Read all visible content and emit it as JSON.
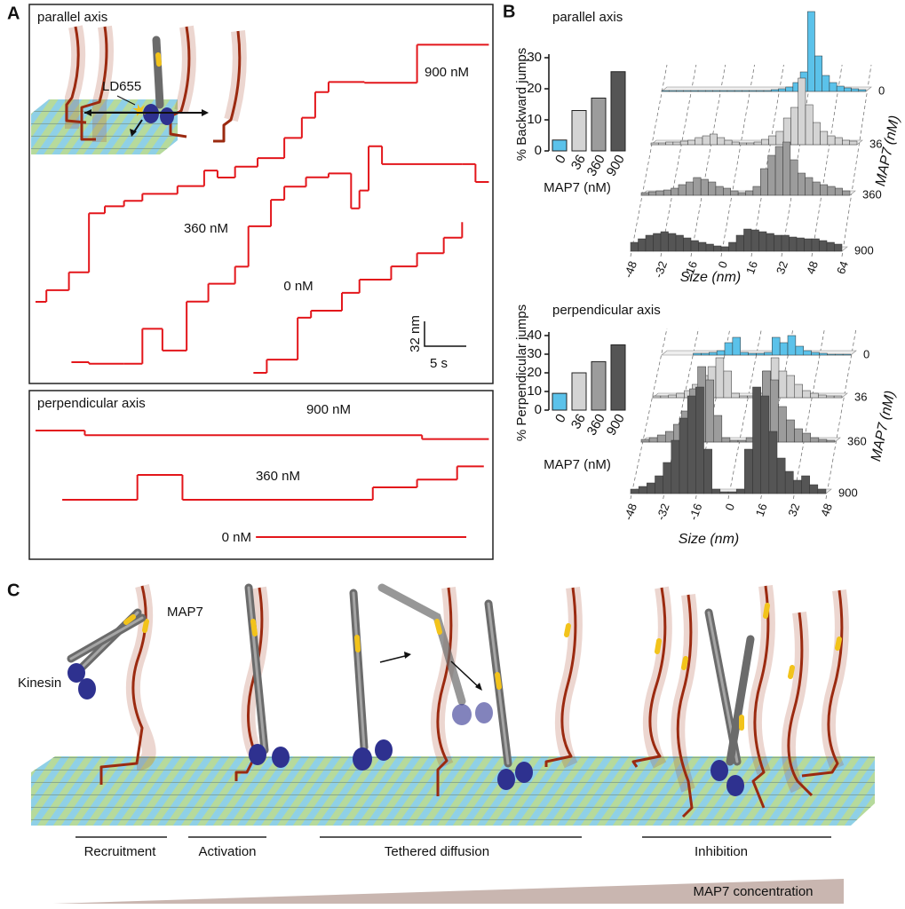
{
  "figure": {
    "panel_labels": [
      "A",
      "B",
      "C"
    ]
  },
  "panel_a": {
    "parallel": {
      "title": "parallel axis",
      "probe_label": "LD655",
      "traces": [
        {
          "name": "900 nM",
          "color": "#e3161b",
          "t": [
            0,
            1.3,
            4,
            6.4,
            8.3,
            10.6,
            12.8,
            17,
            20.2,
            21.8,
            23.9,
            26.6,
            29.8,
            31.9,
            33.5,
            35.1,
            39.4,
            45.7,
            54.3
          ],
          "values": [
            0,
            15,
            38,
            114,
            123,
            130,
            139,
            149,
            169,
            160,
            174,
            185,
            211,
            237,
            270,
            283,
            282,
            331,
            331
          ]
        },
        {
          "name": "360 nM",
          "color": "#e3161b",
          "t": [
            4.3,
            6.4,
            10.6,
            12.8,
            15.2,
            18.1,
            20.7,
            23.9,
            25.5,
            28.2,
            29.8,
            32.4,
            35.1,
            37.8,
            38.8,
            39.9,
            41.5,
            51.1,
            52.7,
            54.3
          ],
          "values": [
            0,
            -2,
            -2,
            43,
            15,
            78,
            101,
            123,
            175,
            209,
            226,
            238,
            243,
            198,
            221,
            278,
            255,
            255,
            232,
            232
          ]
        },
        {
          "name": "0 nM",
          "color": "#e3161b",
          "t": [
            26.1,
            27.7,
            31.4,
            33,
            36.7,
            38.8,
            42.6,
            45.7,
            48.9,
            51.1
          ],
          "values": [
            0,
            17,
            71,
            80,
            103,
            120,
            137,
            154,
            174,
            194
          ]
        }
      ]
    },
    "perpendicular": {
      "title": "perpendicular axis",
      "traces": [
        {
          "name": "900 nM",
          "color": "#e3161b",
          "t": [
            0,
            5.9,
            46.3,
            54.3
          ],
          "values": [
            0,
            -6,
            -11,
            -11
          ]
        },
        {
          "name": "360 nM",
          "color": "#e3161b",
          "t": [
            3.2,
            12.2,
            17.6,
            40.4,
            45.7,
            50.5,
            53.7
          ],
          "values": [
            0,
            32,
            0,
            16,
            26,
            43,
            43
          ]
        },
        {
          "name": "0 nM",
          "color": "#e3161b",
          "t": [
            26.4,
            51.6
          ],
          "values": [
            0,
            0
          ]
        }
      ]
    },
    "scale_bar": {
      "distance": "32 nm",
      "time": "5 s"
    }
  },
  "chart_data": [
    {
      "type": "bar",
      "title": "parallel axis",
      "y_label": "% Backward jumps",
      "x_label": "MAP7 (nM)",
      "categories": [
        "0",
        "36",
        "360",
        "900"
      ],
      "values": [
        3.5,
        13,
        17,
        25.5
      ],
      "colors": [
        "#5bc2ea",
        "#d4d4d4",
        "#9c9c9c",
        "#555555"
      ],
      "ylim": [
        0,
        30
      ],
      "yticks": [
        0,
        10,
        20,
        30
      ]
    },
    {
      "type": "histogram3d",
      "x_label": "Size (nm)",
      "series_label": "MAP7 (nM)",
      "bins": [
        -48,
        -44,
        -40,
        -36,
        -32,
        -28,
        -24,
        -20,
        -16,
        -12,
        -8,
        -4,
        0,
        4,
        8,
        12,
        16,
        20,
        24,
        28,
        32,
        36,
        40,
        44,
        48,
        52,
        56,
        60,
        64
      ],
      "xlim": [
        -48,
        64
      ],
      "xticks": [
        -48,
        -32,
        -16,
        0,
        16,
        32,
        48,
        64
      ],
      "series": [
        {
          "name": "0",
          "color": "#5bc2ea",
          "values": [
            1,
            1,
            1,
            1,
            1,
            1,
            1,
            1,
            1,
            1,
            1,
            1,
            1,
            1,
            1,
            2,
            3,
            5,
            10,
            22,
            90,
            40,
            18,
            10,
            6,
            4,
            3,
            2
          ]
        },
        {
          "name": "36",
          "color": "#d4d4d4",
          "values": [
            2,
            2,
            3,
            3,
            4,
            5,
            8,
            10,
            12,
            8,
            5,
            3,
            2,
            2,
            3,
            6,
            10,
            15,
            30,
            42,
            75,
            45,
            25,
            15,
            10,
            8,
            5,
            4
          ]
        },
        {
          "name": "360",
          "color": "#9c9c9c",
          "values": [
            3,
            4,
            5,
            6,
            8,
            12,
            15,
            20,
            18,
            15,
            10,
            8,
            5,
            3,
            5,
            10,
            30,
            45,
            55,
            60,
            40,
            25,
            20,
            15,
            12,
            10,
            8,
            5
          ]
        },
        {
          "name": "900",
          "color": "#555555",
          "values": [
            10,
            14,
            18,
            20,
            22,
            20,
            18,
            15,
            12,
            10,
            8,
            6,
            5,
            10,
            18,
            25,
            24,
            22,
            20,
            18,
            18,
            16,
            15,
            14,
            14,
            12,
            10,
            8
          ]
        }
      ]
    },
    {
      "type": "bar",
      "title": "perpendicular axis",
      "y_label": "% Perpendicular jumps",
      "x_label": "MAP7 (nM)",
      "categories": [
        "0",
        "36",
        "360",
        "900"
      ],
      "values": [
        9,
        20,
        26,
        35
      ],
      "colors": [
        "#5bc2ea",
        "#d4d4d4",
        "#9c9c9c",
        "#555555"
      ],
      "ylim": [
        0,
        40
      ],
      "yticks": [
        0,
        10,
        20,
        30,
        40
      ]
    },
    {
      "type": "histogram3d",
      "x_label": "Size (nm)",
      "series_label": "MAP7 (nM)",
      "bins": [
        -48,
        -44,
        -40,
        -36,
        -32,
        -28,
        -24,
        -20,
        -16,
        -12,
        -8,
        -4,
        0,
        4,
        8,
        12,
        16,
        20,
        24,
        28,
        32,
        36,
        40,
        44,
        48
      ],
      "xlim": [
        -48,
        48
      ],
      "xticks": [
        -48,
        -32,
        -16,
        0,
        16,
        32,
        48
      ],
      "series": [
        {
          "name": "0",
          "color": "#5bc2ea",
          "values": [
            0,
            0,
            0,
            0,
            2,
            2,
            3,
            5,
            14,
            20,
            3,
            2,
            2,
            3,
            20,
            14,
            22,
            10,
            5,
            3,
            2,
            1,
            1,
            1
          ]
        },
        {
          "name": "36",
          "color": "#d4d4d4",
          "values": [
            2,
            2,
            3,
            5,
            8,
            15,
            25,
            35,
            45,
            30,
            5,
            2,
            2,
            5,
            30,
            45,
            30,
            25,
            15,
            8,
            5,
            3,
            2,
            2
          ]
        },
        {
          "name": "360",
          "color": "#9c9c9c",
          "values": [
            3,
            5,
            8,
            12,
            20,
            35,
            60,
            85,
            70,
            30,
            5,
            2,
            2,
            5,
            30,
            80,
            70,
            40,
            25,
            15,
            10,
            5,
            3,
            2
          ]
        },
        {
          "name": "900",
          "color": "#555555",
          "values": [
            5,
            8,
            12,
            20,
            35,
            60,
            85,
            110,
            120,
            50,
            5,
            2,
            2,
            5,
            50,
            120,
            110,
            70,
            40,
            25,
            15,
            20,
            10,
            5
          ]
        }
      ]
    }
  ],
  "panel_c": {
    "map7_label": "MAP7",
    "kinesin_label": "Kinesin",
    "stages": [
      "Recruitment",
      "Activation",
      "Tethered diffusion",
      "Inhibition"
    ],
    "gradient_label": "MAP7 concentration"
  }
}
